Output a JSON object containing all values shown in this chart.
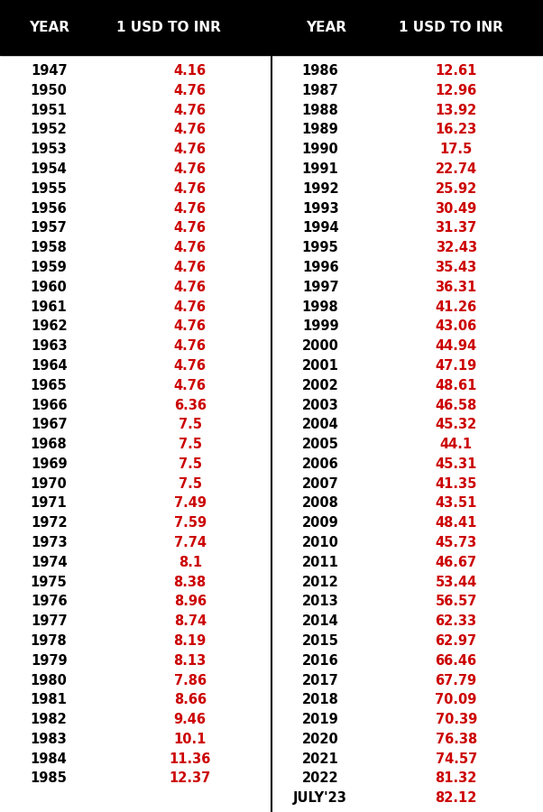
{
  "left_years": [
    "1947",
    "1950",
    "1951",
    "1952",
    "1953",
    "1954",
    "1955",
    "1956",
    "1957",
    "1958",
    "1959",
    "1960",
    "1961",
    "1962",
    "1963",
    "1964",
    "1965",
    "1966",
    "1967",
    "1968",
    "1969",
    "1970",
    "1971",
    "1972",
    "1973",
    "1974",
    "1975",
    "1976",
    "1977",
    "1978",
    "1979",
    "1980",
    "1981",
    "1982",
    "1983",
    "1984",
    "1985"
  ],
  "left_values": [
    "4.16",
    "4.76",
    "4.76",
    "4.76",
    "4.76",
    "4.76",
    "4.76",
    "4.76",
    "4.76",
    "4.76",
    "4.76",
    "4.76",
    "4.76",
    "4.76",
    "4.76",
    "4.76",
    "4.76",
    "6.36",
    "7.5",
    "7.5",
    "7.5",
    "7.5",
    "7.49",
    "7.59",
    "7.74",
    "8.1",
    "8.38",
    "8.96",
    "8.74",
    "8.19",
    "8.13",
    "7.86",
    "8.66",
    "9.46",
    "10.1",
    "11.36",
    "12.37"
  ],
  "right_years": [
    "1986",
    "1987",
    "1988",
    "1989",
    "1990",
    "1991",
    "1992",
    "1993",
    "1994",
    "1995",
    "1996",
    "1997",
    "1998",
    "1999",
    "2000",
    "2001",
    "2002",
    "2003",
    "2004",
    "2005",
    "2006",
    "2007",
    "2008",
    "2009",
    "2010",
    "2011",
    "2012",
    "2013",
    "2014",
    "2015",
    "2016",
    "2017",
    "2018",
    "2019",
    "2020",
    "2021",
    "2022",
    "JULY'23"
  ],
  "right_values": [
    "12.61",
    "12.96",
    "13.92",
    "16.23",
    "17.5",
    "22.74",
    "25.92",
    "30.49",
    "31.37",
    "32.43",
    "35.43",
    "36.31",
    "41.26",
    "43.06",
    "44.94",
    "47.19",
    "48.61",
    "46.58",
    "45.32",
    "44.1",
    "45.31",
    "41.35",
    "43.51",
    "48.41",
    "45.73",
    "46.67",
    "53.44",
    "56.57",
    "62.33",
    "62.97",
    "66.46",
    "67.79",
    "70.09",
    "70.39",
    "76.38",
    "74.57",
    "81.32",
    "82.12"
  ],
  "header_bg": "#000000",
  "header_text_color": "#ffffff",
  "year_text_color": "#000000",
  "value_text_color": "#cc0000",
  "bg_color": "#ffffff",
  "header_left1": "YEAR",
  "header_left2": "1 USD TO INR",
  "header_right1": "YEAR",
  "header_right2": "1 USD TO INR",
  "divider_color": "#000000"
}
